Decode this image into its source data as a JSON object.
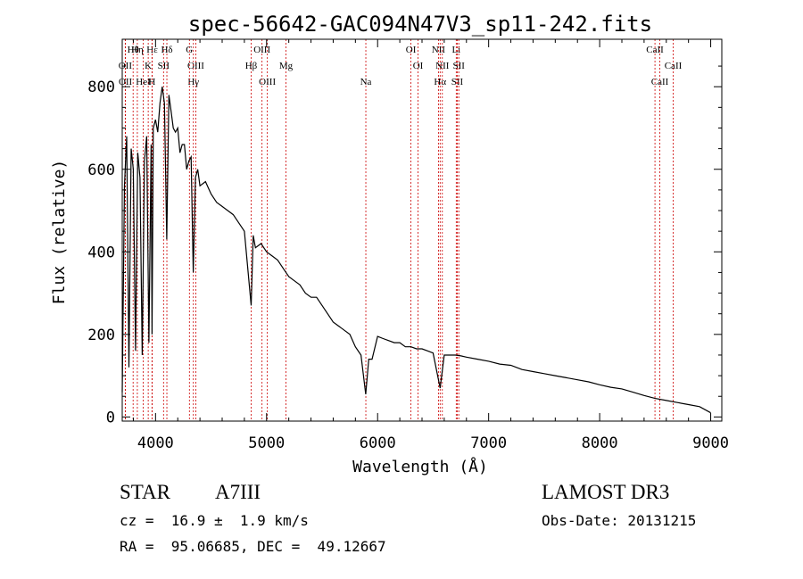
{
  "chart_data": {
    "type": "line",
    "title": "spec-56642-GAC094N47V3_sp11-242.fits",
    "xlabel": "Wavelength (Å)",
    "ylabel": "Flux (relative)",
    "xlim": [
      3700,
      9100
    ],
    "ylim": [
      -10,
      915
    ],
    "xticks": [
      4000,
      5000,
      6000,
      7000,
      8000,
      9000
    ],
    "yticks": [
      0,
      200,
      400,
      600,
      800
    ],
    "series": [
      {
        "name": "flux",
        "x": [
          3700,
          3720,
          3740,
          3760,
          3780,
          3800,
          3820,
          3840,
          3860,
          3880,
          3900,
          3920,
          3940,
          3960,
          3968,
          3980,
          4000,
          4020,
          4040,
          4060,
          4080,
          4101,
          4120,
          4140,
          4160,
          4180,
          4200,
          4220,
          4240,
          4260,
          4280,
          4300,
          4320,
          4340,
          4360,
          4380,
          4400,
          4450,
          4500,
          4550,
          4600,
          4650,
          4700,
          4750,
          4800,
          4861,
          4880,
          4900,
          4950,
          5000,
          5050,
          5100,
          5150,
          5200,
          5250,
          5300,
          5350,
          5400,
          5450,
          5500,
          5550,
          5600,
          5650,
          5700,
          5750,
          5800,
          5850,
          5893,
          5920,
          5950,
          6000,
          6050,
          6100,
          6150,
          6200,
          6250,
          6300,
          6350,
          6400,
          6450,
          6500,
          6563,
          6600,
          6650,
          6700,
          6750,
          6800,
          6900,
          7000,
          7100,
          7200,
          7300,
          7400,
          7500,
          7600,
          7700,
          7800,
          7900,
          8000,
          8100,
          8200,
          8300,
          8400,
          8500,
          8600,
          8700,
          8800,
          8900,
          9000
        ],
        "values": [
          60,
          560,
          680,
          120,
          650,
          600,
          160,
          640,
          580,
          150,
          620,
          680,
          180,
          660,
          200,
          700,
          720,
          690,
          760,
          800,
          760,
          430,
          780,
          740,
          700,
          690,
          700,
          640,
          660,
          660,
          600,
          620,
          630,
          350,
          580,
          600,
          560,
          570,
          540,
          520,
          510,
          500,
          490,
          470,
          450,
          270,
          440,
          410,
          420,
          400,
          390,
          380,
          360,
          340,
          330,
          320,
          300,
          290,
          290,
          270,
          250,
          230,
          220,
          210,
          200,
          170,
          150,
          55,
          140,
          140,
          195,
          190,
          185,
          180,
          180,
          170,
          170,
          165,
          165,
          160,
          155,
          70,
          150,
          150,
          150,
          148,
          145,
          140,
          135,
          128,
          125,
          115,
          110,
          105,
          100,
          95,
          90,
          85,
          78,
          72,
          68,
          60,
          52,
          45,
          40,
          35,
          30,
          25,
          10
        ]
      }
    ],
    "lines": [
      {
        "label": "Hθ",
        "wl": 3798
      },
      {
        "label": "OII",
        "wl": 3727
      },
      {
        "label": "OII",
        "wl": 3729
      },
      {
        "label": "Hη",
        "wl": 3836
      },
      {
        "label": "K",
        "wl": 3934
      },
      {
        "label": "HeI",
        "wl": 3889
      },
      {
        "label": "Hε",
        "wl": 3970
      },
      {
        "label": "SII",
        "wl": 4072
      },
      {
        "label": "H",
        "wl": 3968
      },
      {
        "label": "Hδ",
        "wl": 4102
      },
      {
        "label": "OIII",
        "wl": 4363
      },
      {
        "label": "Hγ",
        "wl": 4341
      },
      {
        "label": "G",
        "wl": 4305
      },
      {
        "label": "Hβ",
        "wl": 4861
      },
      {
        "label": "OIII",
        "wl": 5007
      },
      {
        "label": "OIII",
        "wl": 4959
      },
      {
        "label": "Mg",
        "wl": 5175
      },
      {
        "label": "Na",
        "wl": 5894
      },
      {
        "label": "OI",
        "wl": 6300
      },
      {
        "label": "OI",
        "wl": 6364
      },
      {
        "label": "Hα",
        "wl": 6563
      },
      {
        "label": "NII",
        "wl": 6548
      },
      {
        "label": "NII",
        "wl": 6583
      },
      {
        "label": "SII",
        "wl": 6717
      },
      {
        "label": "Li",
        "wl": 6708
      },
      {
        "label": "SII",
        "wl": 6731
      },
      {
        "label": "CaII",
        "wl": 8542
      },
      {
        "label": "CaII",
        "wl": 8498
      },
      {
        "label": "CaII",
        "wl": 8662
      }
    ]
  },
  "info": {
    "object_class": "STAR",
    "subclass": "A7III",
    "survey": "LAMOST DR3",
    "redshift": "cz =  16.9 ±  1.9 km/s",
    "obs_date": "Obs-Date: 20131215",
    "coords": "RA =  95.06685, DEC =  49.12667"
  },
  "colors": {
    "line": "#000000",
    "marker": "#cc0000",
    "axes": "#000000"
  }
}
